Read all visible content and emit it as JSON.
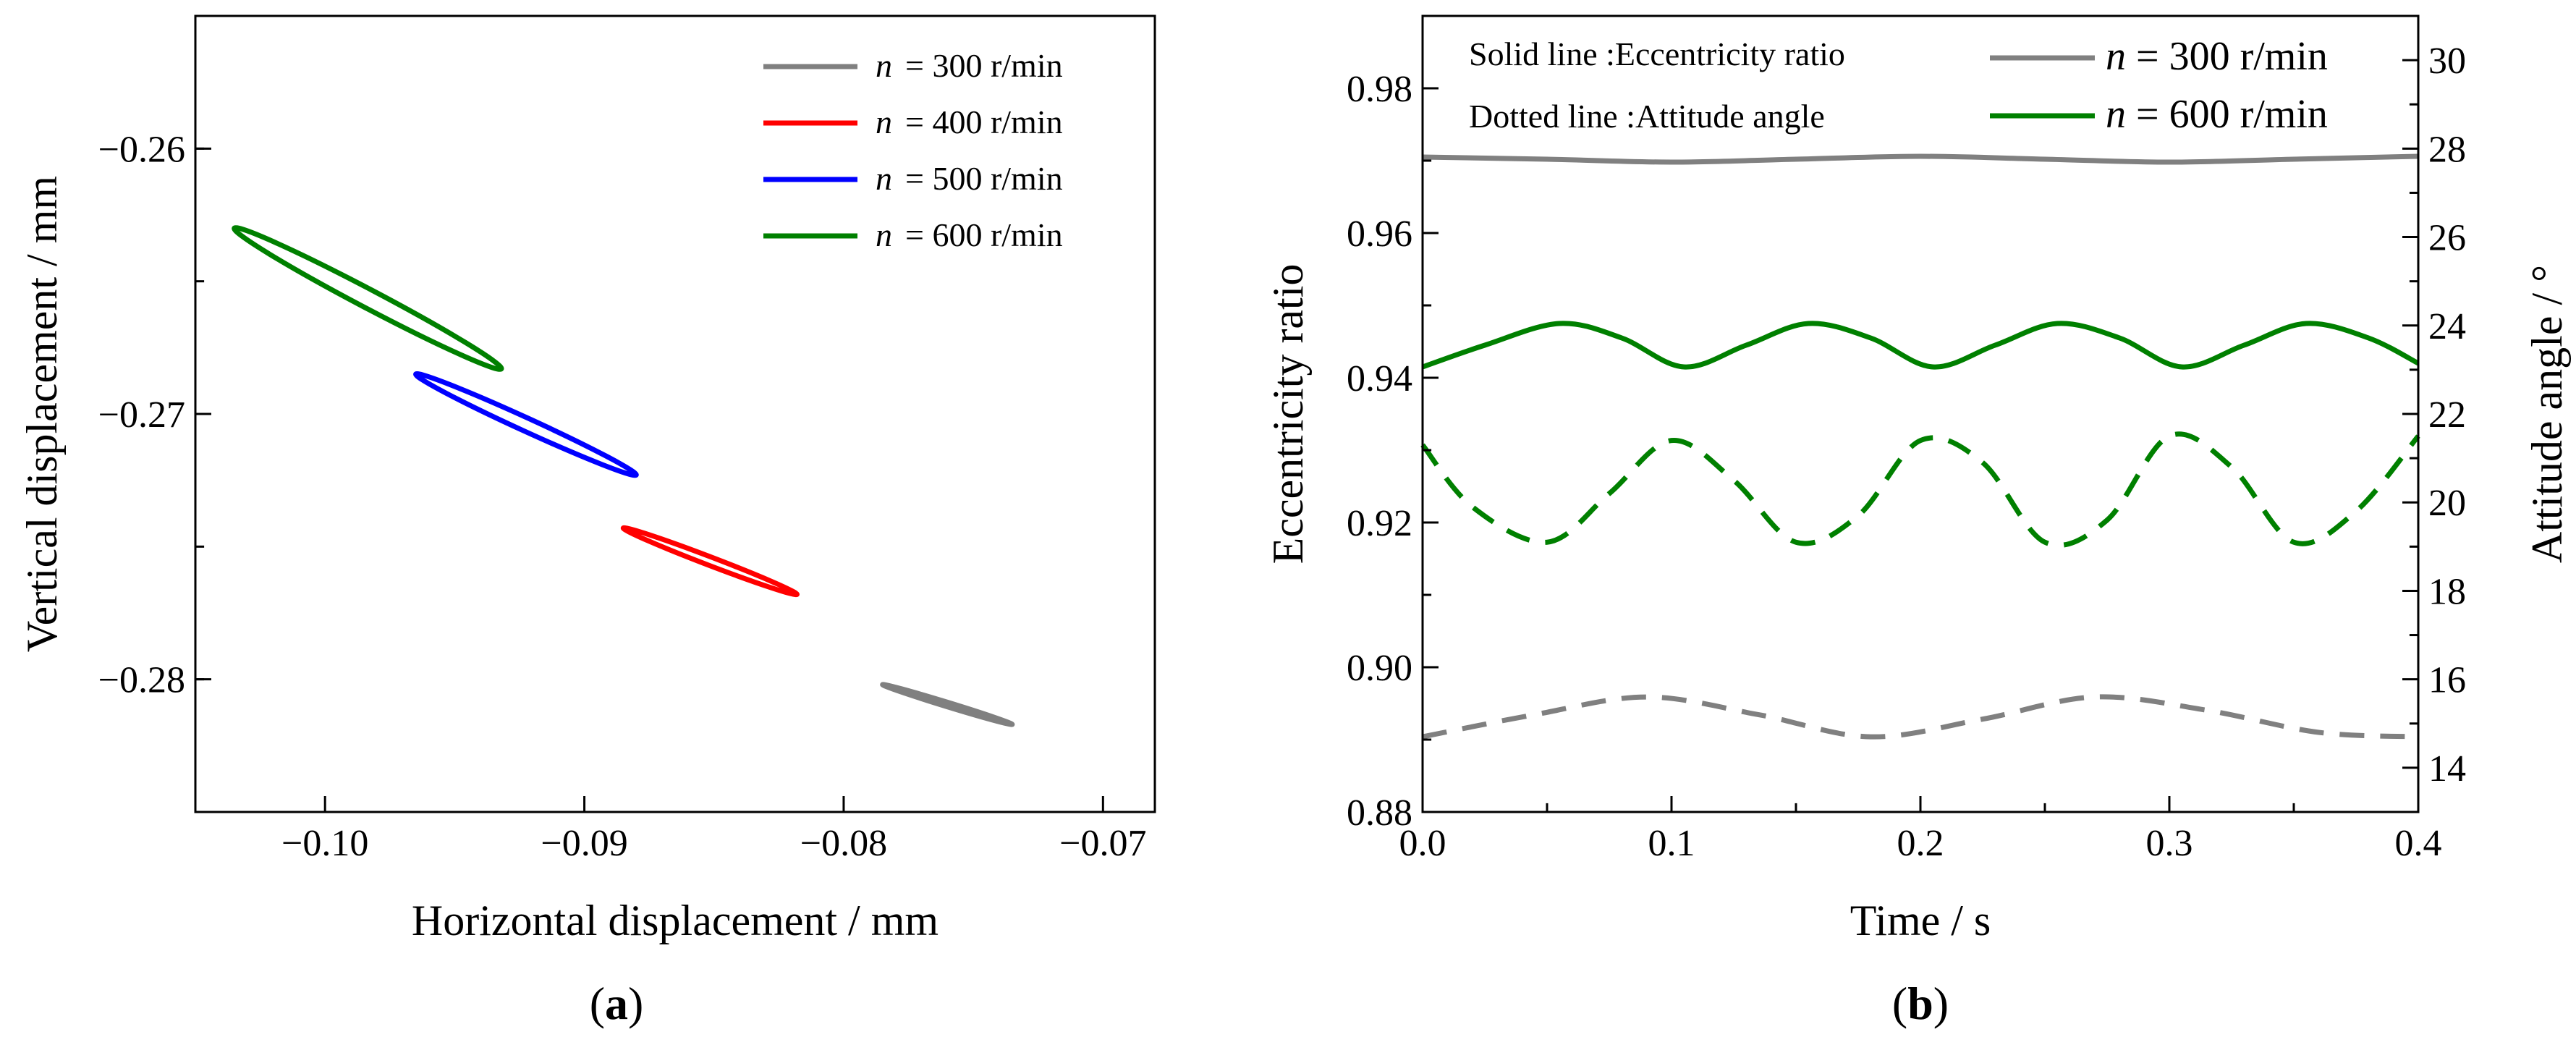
{
  "chart_data": [
    {
      "type": "line",
      "panel_label": "(a)",
      "xlabel": "Horizontal displacement / mm",
      "ylabel": "Vertical displacement / mm",
      "xlim": [
        -0.105,
        -0.068
      ],
      "ylim": [
        -0.285,
        -0.255
      ],
      "x_ticks": [
        -0.1,
        -0.09,
        -0.08,
        -0.07
      ],
      "x_tick_labels": [
        "−0.10",
        "−0.09",
        "−0.08",
        "−0.07"
      ],
      "y_ticks": [
        -0.26,
        -0.27,
        -0.28
      ],
      "y_tick_labels": [
        "−0.26",
        "−0.27",
        "−0.28"
      ],
      "legend_position": "top-right",
      "series": [
        {
          "name": "n = 300 r/min",
          "legend_var": "n",
          "legend_rest": "= 300 r/min",
          "color": "#808080",
          "orbit": {
            "from": [
              -0.0785,
              -0.2802
            ],
            "to": [
              -0.0735,
              -0.2817
            ],
            "minor_halfwidth": 8e-05
          }
        },
        {
          "name": "n = 400 r/min",
          "legend_var": "n",
          "legend_rest": "= 400 r/min",
          "color": "#ff0000",
          "orbit": {
            "from": [
              -0.0885,
              -0.2743
            ],
            "to": [
              -0.0818,
              -0.2768
            ],
            "minor_halfwidth": 0.00016
          }
        },
        {
          "name": "n = 500 r/min",
          "legend_var": "n",
          "legend_rest": "= 500 r/min",
          "color": "#0000ff",
          "orbit": {
            "from": [
              -0.0965,
              -0.2685
            ],
            "to": [
              -0.088,
              -0.2723
            ],
            "minor_halfwidth": 0.00025
          }
        },
        {
          "name": "n = 600 r/min",
          "legend_var": "n",
          "legend_rest": "= 600 r/min",
          "color": "#008000",
          "orbit": {
            "from": [
              -0.1035,
              -0.263
            ],
            "to": [
              -0.0932,
              -0.2683
            ],
            "minor_halfwidth": 0.00035
          }
        }
      ]
    },
    {
      "type": "line",
      "panel_label": "(b)",
      "xlabel": "Time / s",
      "ylabel_left": "Eccentricity ratio",
      "ylabel_right": "Attitude angle / °",
      "xlim": [
        0,
        0.4
      ],
      "ylim_left": [
        0.88,
        0.99
      ],
      "ylim_right": [
        13,
        31
      ],
      "x_ticks": [
        0.0,
        0.1,
        0.2,
        0.3,
        0.4
      ],
      "x_tick_labels": [
        "0.0",
        "0.1",
        "0.2",
        "0.3",
        "0.4"
      ],
      "y_left_ticks": [
        0.88,
        0.9,
        0.92,
        0.94,
        0.96,
        0.98
      ],
      "y_left_tick_labels": [
        "0.88",
        "0.90",
        "0.92",
        "0.94",
        "0.96",
        "0.98"
      ],
      "y_right_ticks": [
        14,
        16,
        18,
        20,
        22,
        24,
        26,
        28,
        30
      ],
      "y_right_tick_labels": [
        "14",
        "16",
        "18",
        "20",
        "22",
        "24",
        "26",
        "28",
        "30"
      ],
      "annotations": [
        "Solid line :Eccentricity ratio",
        "Dotted line :Attitude angle"
      ],
      "legend_position": "top-right",
      "legend": [
        {
          "name": "n = 300 r/min",
          "legend_var": "n",
          "legend_rest": " = 300 r/min",
          "color": "#808080"
        },
        {
          "name": "n = 600 r/min",
          "legend_var": "n",
          "legend_rest": " = 600 r/min",
          "color": "#008000"
        }
      ],
      "series": [
        {
          "name": "Eccentricity ratio, n = 300 r/min",
          "axis": "left",
          "style": "solid",
          "color": "#808080",
          "x": [
            0.0,
            0.05,
            0.1,
            0.15,
            0.2,
            0.25,
            0.3,
            0.35,
            0.4
          ],
          "y": [
            0.9705,
            0.9702,
            0.9698,
            0.9702,
            0.9706,
            0.9702,
            0.9698,
            0.9702,
            0.9706
          ]
        },
        {
          "name": "Eccentricity ratio, n = 600 r/min",
          "axis": "left",
          "style": "solid",
          "color": "#008000",
          "x": [
            0.0,
            0.025,
            0.055,
            0.08,
            0.105,
            0.13,
            0.155,
            0.18,
            0.205,
            0.23,
            0.255,
            0.28,
            0.305,
            0.33,
            0.355,
            0.38,
            0.4
          ],
          "y": [
            0.9415,
            0.9445,
            0.9475,
            0.9455,
            0.9415,
            0.9445,
            0.9475,
            0.9455,
            0.9415,
            0.9445,
            0.9475,
            0.9455,
            0.9415,
            0.9445,
            0.9475,
            0.9455,
            0.942
          ]
        },
        {
          "name": "Attitude angle, n = 300 r/min",
          "axis": "right",
          "style": "dashed",
          "color": "#808080",
          "x": [
            0.0,
            0.045,
            0.09,
            0.135,
            0.18,
            0.225,
            0.27,
            0.315,
            0.36,
            0.4
          ],
          "y": [
            14.7,
            15.2,
            15.6,
            15.2,
            14.7,
            15.1,
            15.6,
            15.3,
            14.8,
            14.7
          ]
        },
        {
          "name": "Attitude angle, n = 600 r/min",
          "axis": "right",
          "style": "dashed",
          "color": "#008000",
          "x": [
            0.0,
            0.02,
            0.05,
            0.075,
            0.1,
            0.125,
            0.15,
            0.175,
            0.2,
            0.225,
            0.25,
            0.275,
            0.3,
            0.325,
            0.35,
            0.375,
            0.4
          ],
          "y": [
            21.3,
            19.9,
            19.1,
            20.2,
            21.4,
            20.5,
            19.1,
            19.7,
            21.4,
            20.9,
            19.1,
            19.6,
            21.5,
            20.8,
            19.1,
            19.8,
            21.5
          ]
        }
      ]
    }
  ]
}
